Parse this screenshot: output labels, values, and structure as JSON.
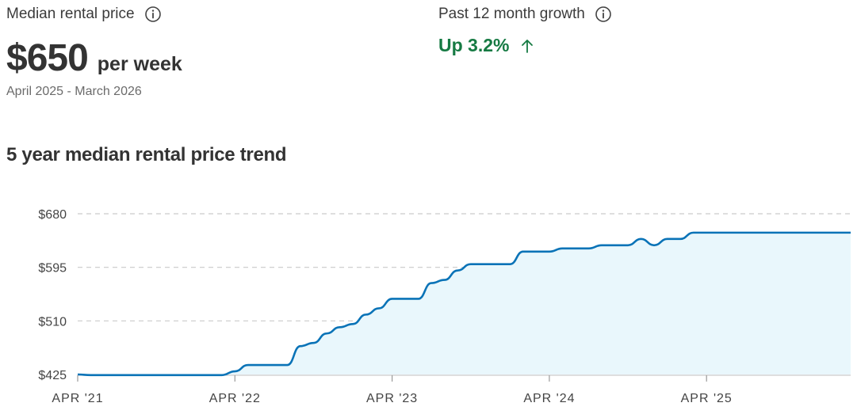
{
  "median": {
    "label": "Median rental price",
    "price": "$650",
    "unit": "per week",
    "period": "April 2025 - March 2026"
  },
  "growth": {
    "label": "Past 12 month growth",
    "value": "Up 3.2%",
    "color": "#167a43"
  },
  "icons": {
    "info": "info-icon",
    "arrow": "arrow-up-icon"
  },
  "section_title": "5 year median rental price trend",
  "chart_data": {
    "type": "area",
    "title": "5 year median rental price trend",
    "yticks": [
      425,
      510,
      595,
      680
    ],
    "ytick_labels": [
      "$425",
      "$510",
      "$595",
      "$680"
    ],
    "ylim": [
      425,
      680
    ],
    "xtick_labels": [
      "APR '21",
      "APR '22",
      "APR '23",
      "APR '24",
      "APR '25"
    ],
    "xlim": [
      0,
      59
    ],
    "grid": true,
    "line_color": "#0a73b7",
    "fill_color": "#e9f7fc",
    "series": [
      {
        "values": [
          425,
          424,
          424,
          424,
          424,
          424,
          424,
          424,
          424,
          424,
          424,
          424,
          430,
          440,
          440,
          440,
          440,
          470,
          475,
          490,
          500,
          505,
          520,
          530,
          545,
          545,
          545,
          570,
          575,
          590,
          600,
          600,
          600,
          600,
          620,
          620,
          620,
          625,
          625,
          625,
          630,
          630,
          630,
          640,
          630,
          640,
          640,
          650,
          650,
          650,
          650,
          650,
          650,
          650,
          650,
          650,
          650,
          650,
          650,
          650
        ]
      }
    ]
  }
}
